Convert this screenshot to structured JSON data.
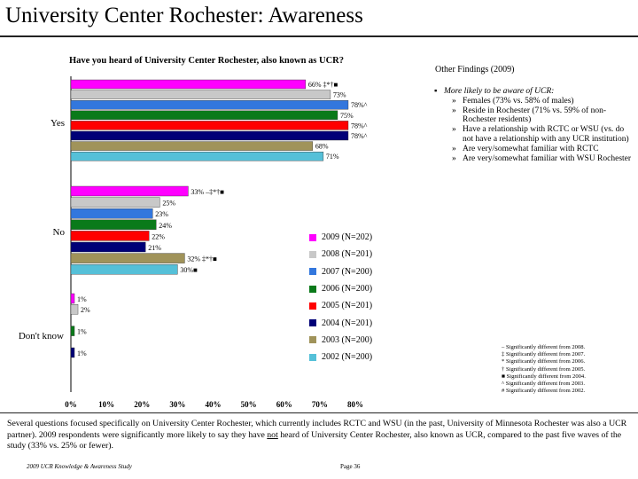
{
  "page": {
    "title": "University Center Rochester:  Awareness",
    "side_heading": "Other Findings (2009)",
    "summary_pre": "Several questions focused specifically on University Center Rochester, which currently includes RCTC and WSU (in the past, University of Minnesota Rochester was also a UCR partner). 2009 respondents were significantly more likely to say they have ",
    "summary_underlined": "not",
    "summary_post": " heard of University Center Rochester, also known as UCR, compared to the past five waves of the study (33% vs. 25% or fewer).",
    "footer_left": "2009 UCR Knowledge & Awareness Study",
    "footer_page": "Page 36"
  },
  "findings": {
    "lead": "More likely to be aware of UCR:",
    "marker": "»",
    "items": [
      "Females (73% vs. 58% of males)",
      "Reside in Rochester (71% vs. 59% of non-Rochester residents)",
      "Have a relationship with RCTC or WSU (vs. do not have a relationship with any UCR institution)",
      "Are very/somewhat familiar with RCTC",
      "Are very/somewhat familiar with WSU Rochester"
    ]
  },
  "notes": [
    "– Significantly different from 2008.",
    "‡ Significantly different from 2007.",
    "* Significantly different from 2006.",
    "† Significantly different from 2005.",
    "■ Significantly different from 2004.",
    "^ Significantly different from 2003.",
    "# Significantly different from 2002."
  ],
  "chart_data": {
    "type": "bar",
    "orientation": "horizontal",
    "title": "Have you heard of University Center Rochester, also known as UCR?",
    "categories": [
      "Yes",
      "No",
      "Don't know"
    ],
    "xlim": [
      0,
      80
    ],
    "xticks": [
      "0%",
      "10%",
      "20%",
      "30%",
      "40%",
      "50%",
      "60%",
      "70%",
      "80%"
    ],
    "series": [
      {
        "name": "2009 (N=202)",
        "color": "#ff00ff",
        "values": [
          66,
          33,
          1
        ],
        "labels": [
          "66% ‡*†■",
          "33% –‡*†■",
          "1%"
        ]
      },
      {
        "name": "2008 (N=201)",
        "color": "#c8c8c8",
        "values": [
          73,
          25,
          2
        ],
        "labels": [
          "73%",
          "25%",
          "2%"
        ]
      },
      {
        "name": "2007 (N=200)",
        "color": "#3377dd",
        "values": [
          78,
          23,
          0
        ],
        "labels": [
          "78%^",
          "23%",
          ""
        ]
      },
      {
        "name": "2006 (N=200)",
        "color": "#0a7a1a",
        "values": [
          75,
          24,
          1
        ],
        "labels": [
          "75%",
          "24%",
          "1%"
        ]
      },
      {
        "name": "2005 (N=201)",
        "color": "#ff0000",
        "values": [
          78,
          22,
          0
        ],
        "labels": [
          "78%^",
          "22%",
          ""
        ]
      },
      {
        "name": "2004 (N=201)",
        "color": "#000077",
        "values": [
          78,
          21,
          1
        ],
        "labels": [
          "78%^",
          "21%",
          "1%"
        ]
      },
      {
        "name": "2003 (N=200)",
        "color": "#a0935a",
        "values": [
          68,
          32,
          0
        ],
        "labels": [
          "68%",
          "32% ‡*†■",
          ""
        ]
      },
      {
        "name": "2002 (N=200)",
        "color": "#55c0d8",
        "values": [
          71,
          30,
          0
        ],
        "labels": [
          "71%",
          "30%■",
          ""
        ]
      }
    ],
    "legend_position": "right"
  }
}
